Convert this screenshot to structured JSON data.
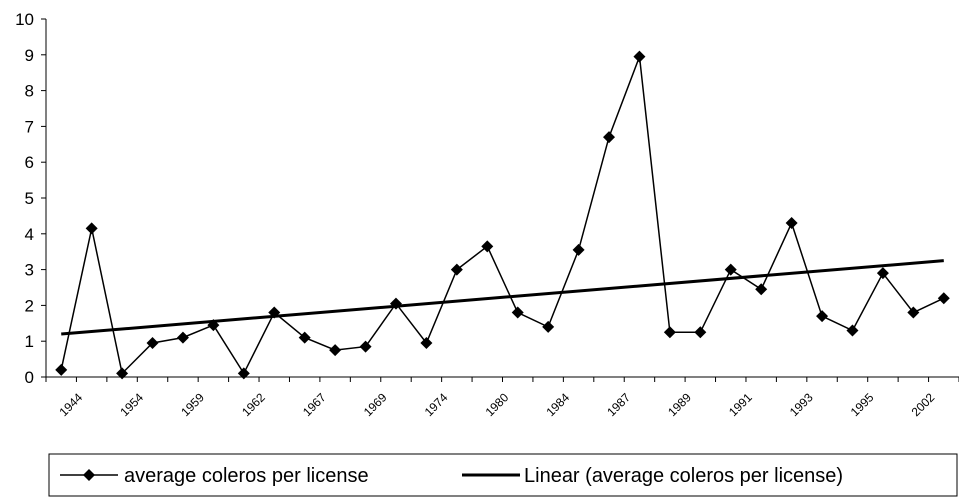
{
  "chart_data": {
    "type": "line",
    "title": "",
    "xlabel": "",
    "ylabel": "",
    "ylim": [
      0,
      10
    ],
    "yticks": [
      "0",
      "1",
      "2",
      "3",
      "4",
      "5",
      "6",
      "7",
      "8",
      "9",
      "10"
    ],
    "xtick_labels": [
      "1944",
      "1954",
      "1959",
      "1962",
      "1967",
      "1969",
      "1974",
      "1980",
      "1984",
      "1987",
      "1989",
      "1991",
      "1993",
      "1995",
      "2002"
    ],
    "grid": false,
    "legend_position": "bottom",
    "series": [
      {
        "name": "average coleros per license",
        "marker": "diamond",
        "color": "#000000",
        "values": [
          0.2,
          4.15,
          0.1,
          0.95,
          1.1,
          1.45,
          0.1,
          1.8,
          1.1,
          0.75,
          0.85,
          2.05,
          0.95,
          3.0,
          3.65,
          1.8,
          1.4,
          3.55,
          6.7,
          8.95,
          1.25,
          1.25,
          3.0,
          2.45,
          4.3,
          1.7,
          1.3,
          2.9,
          1.8,
          2.2
        ]
      }
    ],
    "trendline": {
      "name": "Linear (average coleros per license)",
      "type": "linear",
      "color": "#000000",
      "start": 1.2,
      "end": 3.25
    }
  }
}
